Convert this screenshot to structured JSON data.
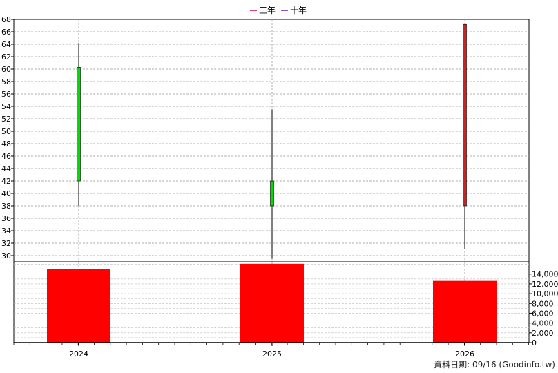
{
  "legend": [
    {
      "label": "三年",
      "color": "#cc0033"
    },
    {
      "label": "十年",
      "color": "#6a1bb0"
    }
  ],
  "footer": "資料日期: 09/16  (Goodinfo.tw)",
  "chart_data": [
    {
      "type": "candlestick",
      "categories": [
        "2024",
        "2025",
        "2026"
      ],
      "ohlc": [
        {
          "open": 42,
          "high": 64.2,
          "low": 38,
          "close": 60.3,
          "color": "#00dd00"
        },
        {
          "open": 38,
          "high": 53.5,
          "low": 29.5,
          "close": 42,
          "color": "#00dd00"
        },
        {
          "open": 67.2,
          "high": 67.2,
          "low": 31,
          "close": 38,
          "color": "#cc2222"
        }
      ],
      "ylim": [
        29,
        68
      ],
      "yticks": [
        30,
        32,
        34,
        36,
        38,
        40,
        42,
        44,
        46,
        48,
        50,
        52,
        54,
        56,
        58,
        60,
        62,
        64,
        66,
        68
      ],
      "grid": true
    },
    {
      "type": "bar",
      "categories": [
        "2024",
        "2025",
        "2026"
      ],
      "values": [
        15000,
        16100,
        12600
      ],
      "color": "#ff0000",
      "ylim": [
        0,
        16500
      ],
      "yticks": [
        0,
        2000,
        4000,
        6000,
        8000,
        10000,
        12000,
        14000
      ],
      "ytick_labels": [
        "0",
        "2,000",
        "4,000",
        "6,000",
        "8,000",
        "10,000",
        "12,000",
        "14,000"
      ],
      "grid": true
    }
  ]
}
